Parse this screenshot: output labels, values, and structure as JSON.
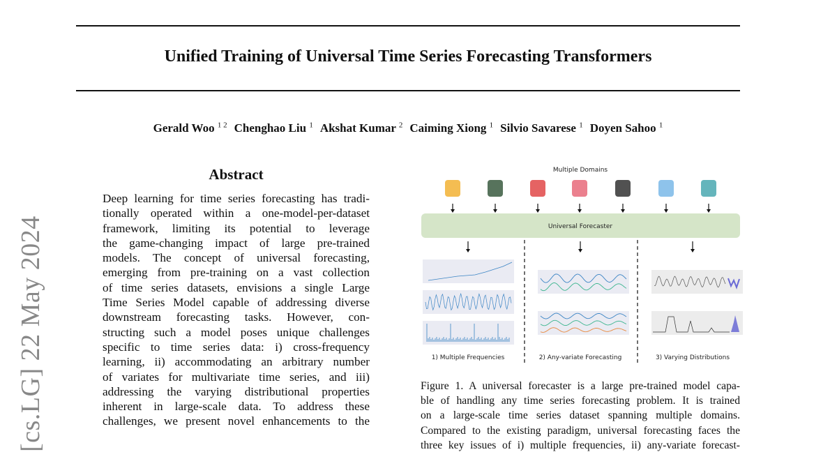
{
  "arxiv_stamp": "[cs.LG]  22 May 2024",
  "title": "Unified Training of Universal Time Series Forecasting Transformers",
  "authors": [
    {
      "name": "Gerald Woo",
      "aff": "1 2"
    },
    {
      "name": "Chenghao Liu",
      "aff": "1"
    },
    {
      "name": "Akshat Kumar",
      "aff": "2"
    },
    {
      "name": "Caiming Xiong",
      "aff": "1"
    },
    {
      "name": "Silvio Savarese",
      "aff": "1"
    },
    {
      "name": "Doyen Sahoo",
      "aff": "1"
    }
  ],
  "abstract": {
    "heading": "Abstract",
    "lines": [
      "Deep learning for time series forecasting has tradi-",
      "tionally operated within a one-model-per-dataset",
      "framework, limiting its potential to leverage",
      "the game-changing impact of large pre-trained",
      "models.  The concept of universal forecasting,",
      "emerging from pre-training on a vast collection",
      "of time series datasets, envisions a single Large",
      "Time Series Model capable of addressing diverse",
      "downstream forecasting tasks.  However, con-",
      "structing such a model poses unique challenges",
      "specific to time series data:  i) cross-frequency",
      "learning, ii) accommodating an arbitrary number",
      "of variates for multivariate time series, and iii)",
      "addressing the varying distributional properties",
      "inherent in large-scale data.  To address these",
      "challenges, we present novel enhancements to the"
    ]
  },
  "figure": {
    "domains_label": "Multiple Domains",
    "domain_icons": [
      "web-search-icon",
      "battery-icon",
      "heart-rate-icon",
      "sale-tag-icon",
      "traffic-light-icon",
      "weather-icon",
      "cloud-database-icon"
    ],
    "forecaster_label": "Universal Forecaster",
    "panels": [
      "1) Multiple Frequencies",
      "2) Any-variate Forecasting",
      "3) Varying Distributions"
    ],
    "colors": {
      "forecaster_bg": "#d5e5c8",
      "plot_bg": "#eaebf3",
      "blue": "#3a84c4",
      "green": "#3bb58e",
      "orange": "#e8873a",
      "forecast": "#3333cc"
    }
  },
  "caption": {
    "lines": [
      "Figure 1. A universal forecaster is a large pre-trained model capa-",
      "ble of handling any time series forecasting problem. It is trained",
      "on a large-scale time series dataset spanning multiple domains.",
      "Compared to the existing paradigm, universal forecasting faces the",
      "three key issues of i) multiple frequencies, ii) any-variate forecast-"
    ]
  }
}
